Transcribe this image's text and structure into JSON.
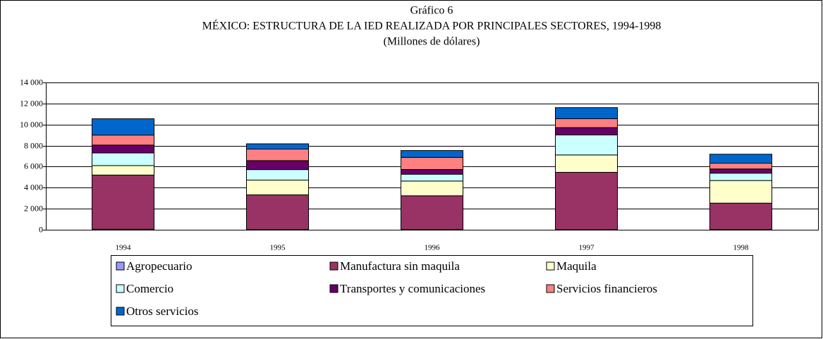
{
  "chart_data": {
    "type": "stacked_bar",
    "title": "Gráfico 6",
    "subtitle": "MÉXICO: ESTRUCTURA DE LA IED REALIZADA POR PRINCIPALES SECTORES, 1994-1998",
    "units": "(Millones de dólares)",
    "categories": [
      "1994",
      "1995",
      "1996",
      "1997",
      "1998"
    ],
    "series": [
      {
        "name": "Agropecuario",
        "color": "#9999ff",
        "values": [
          50,
          20,
          30,
          10,
          30
        ]
      },
      {
        "name": "Manufactura sin maquila",
        "color": "#993366",
        "values": [
          5150,
          3300,
          3200,
          5450,
          2500
        ]
      },
      {
        "name": "Maquila",
        "color": "#ffffcc",
        "values": [
          900,
          1400,
          1400,
          1650,
          2150
        ]
      },
      {
        "name": "Comercio",
        "color": "#ccffff",
        "values": [
          1200,
          1000,
          650,
          1900,
          700
        ]
      },
      {
        "name": "Transportes y comunicaciones",
        "color": "#660066",
        "values": [
          750,
          850,
          450,
          700,
          400
        ]
      },
      {
        "name": "Servicios financieros",
        "color": "#ff8080",
        "values": [
          950,
          1100,
          1150,
          850,
          550
        ]
      },
      {
        "name": "Otros servicios",
        "color": "#0066cc",
        "values": [
          1550,
          500,
          650,
          1050,
          850
        ]
      }
    ],
    "ylim": [
      0,
      14000
    ],
    "yticks": [
      0,
      {
        "value": 2000,
        "label": "2 000"
      },
      {
        "value": 4000,
        "label": "4 000"
      },
      {
        "value": 6000,
        "label": "6 000"
      },
      {
        "value": 8000,
        "label": "8 000"
      },
      {
        "value": 10000,
        "label": "10 000"
      },
      {
        "value": 12000,
        "label": "12 000"
      },
      {
        "value": 14000,
        "label": "14 000"
      }
    ],
    "grid": true,
    "legend": "bottom"
  }
}
